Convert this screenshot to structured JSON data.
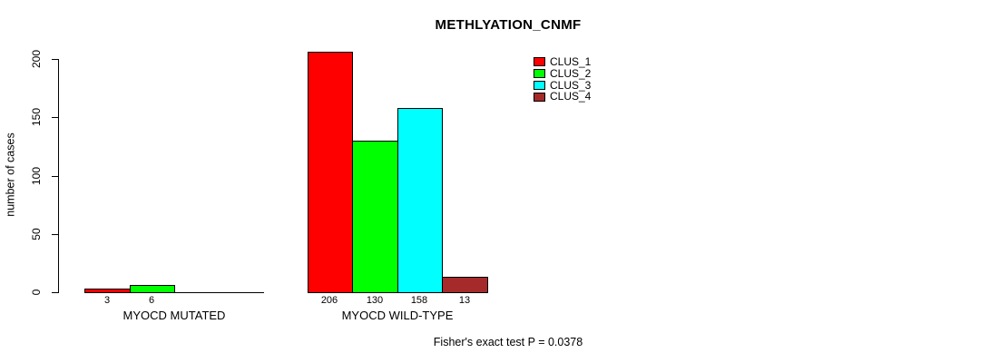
{
  "chart_data": {
    "type": "bar",
    "title": "METHLYATION_CNMF",
    "ylabel": "number of cases",
    "xlabel": "",
    "ylim": [
      0,
      200
    ],
    "yticks": [
      0,
      50,
      100,
      150,
      200
    ],
    "grid": false,
    "legend_position": "top-right",
    "categories": [
      "MYOCD MUTATED",
      "MYOCD WILD-TYPE"
    ],
    "series": [
      {
        "name": "CLUS_1",
        "color": "#ff0000",
        "values": [
          3,
          206
        ]
      },
      {
        "name": "CLUS_2",
        "color": "#00ff00",
        "values": [
          6,
          130
        ]
      },
      {
        "name": "CLUS_3",
        "color": "#00ffff",
        "values": [
          0,
          158
        ]
      },
      {
        "name": "CLUS_4",
        "color": "#a52a2a",
        "values": [
          0,
          13
        ]
      }
    ],
    "bar_value_labels": [
      [
        "3",
        "6",
        "",
        ""
      ],
      [
        "206",
        "130",
        "158",
        "13"
      ]
    ],
    "annotation": "Fisher's exact test P = 0.0378"
  }
}
